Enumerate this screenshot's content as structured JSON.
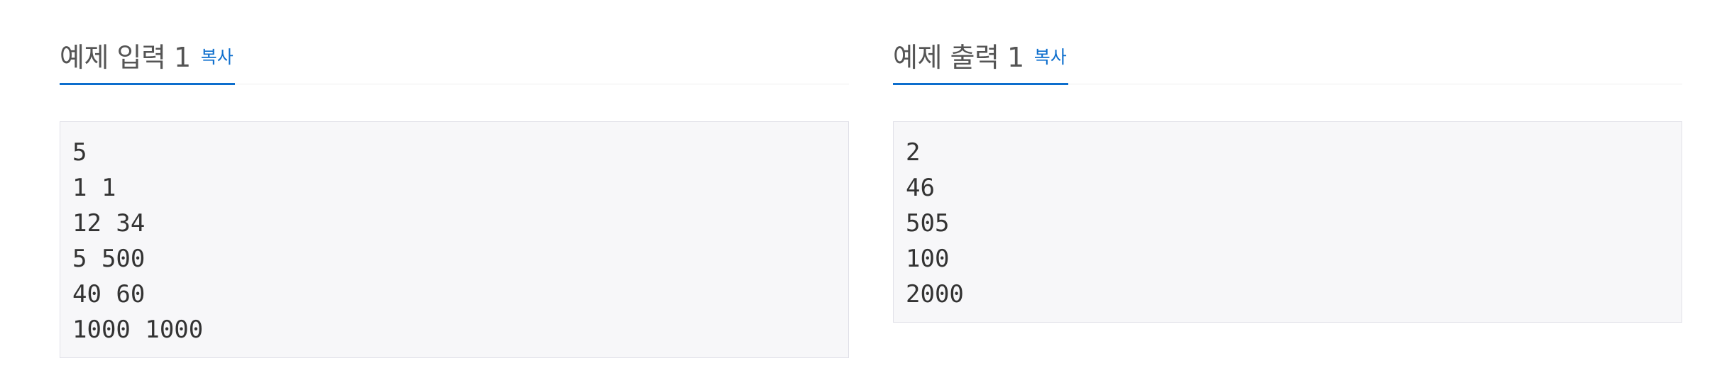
{
  "sample_input": {
    "title": "예제 입력 1",
    "copy_label": "복사",
    "lines": [
      "5",
      "1 1",
      "12 34",
      "5 500",
      "40 60",
      "1000 1000"
    ]
  },
  "sample_output": {
    "title": "예제 출력 1",
    "copy_label": "복사",
    "lines": [
      "2",
      "46",
      "505",
      "100",
      "2000"
    ]
  },
  "colors": {
    "accent": "#0d6ecd",
    "title_text": "#555555",
    "pre_background": "#f7f7f9",
    "pre_border": "#e1e1e8"
  }
}
